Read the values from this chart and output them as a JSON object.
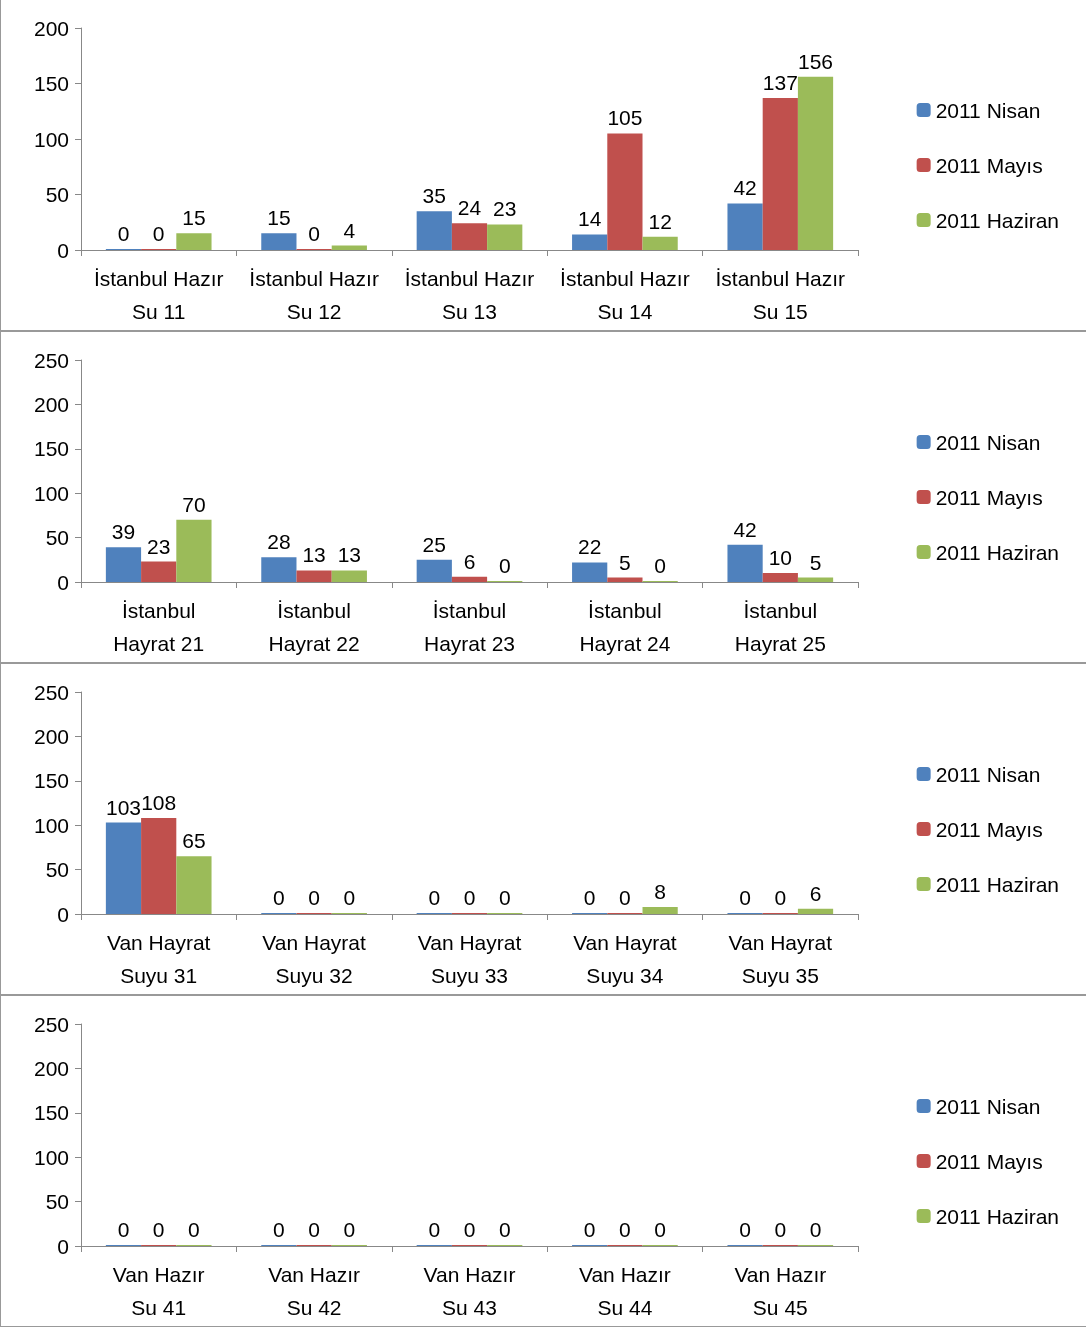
{
  "chart_data": [
    {
      "type": "bar",
      "categories": [
        "İstanbul Hazır\nSu 11",
        "İstanbul Hazır\nSu 12",
        "İstanbul Hazır\nSu 13",
        "İstanbul Hazır\nSu 14",
        "İstanbul Hazır\nSu 15"
      ],
      "series": [
        {
          "name": "2011 Nisan",
          "color": "#4f81bd",
          "values": [
            0,
            15,
            35,
            14,
            42
          ]
        },
        {
          "name": "2011 Mayıs",
          "color": "#c0504d",
          "values": [
            0,
            0,
            24,
            105,
            137
          ]
        },
        {
          "name": "2011 Haziran",
          "color": "#9bbb59",
          "values": [
            15,
            4,
            23,
            12,
            156
          ]
        }
      ],
      "ylim": [
        0,
        200
      ],
      "yticks": [
        0,
        50,
        100,
        150,
        200
      ],
      "data_labels": true,
      "legend": "right",
      "grid": false
    },
    {
      "type": "bar",
      "categories": [
        "İstanbul\nHayrat 21",
        "İstanbul\nHayrat 22",
        "İstanbul\nHayrat 23",
        "İstanbul\nHayrat 24",
        "İstanbul\nHayrat 25"
      ],
      "series": [
        {
          "name": "2011 Nisan",
          "color": "#4f81bd",
          "values": [
            39,
            28,
            25,
            22,
            42
          ]
        },
        {
          "name": "2011 Mayıs",
          "color": "#c0504d",
          "values": [
            23,
            13,
            6,
            5,
            10
          ]
        },
        {
          "name": "2011 Haziran",
          "color": "#9bbb59",
          "values": [
            70,
            13,
            0,
            0,
            5
          ]
        }
      ],
      "ylim": [
        0,
        250
      ],
      "yticks": [
        0,
        50,
        100,
        150,
        200,
        250
      ],
      "data_labels": true,
      "legend": "right",
      "grid": false
    },
    {
      "type": "bar",
      "categories": [
        "Van Hayrat\nSuyu 31",
        "Van Hayrat\nSuyu 32",
        "Van Hayrat\nSuyu 33",
        "Van Hayrat\nSuyu 34",
        "Van Hayrat\nSuyu 35"
      ],
      "series": [
        {
          "name": "2011 Nisan",
          "color": "#4f81bd",
          "values": [
            103,
            0,
            0,
            0,
            0
          ]
        },
        {
          "name": "2011 Mayıs",
          "color": "#c0504d",
          "values": [
            108,
            0,
            0,
            0,
            0
          ]
        },
        {
          "name": "2011 Haziran",
          "color": "#9bbb59",
          "values": [
            65,
            0,
            0,
            8,
            6
          ]
        }
      ],
      "ylim": [
        0,
        250
      ],
      "yticks": [
        0,
        50,
        100,
        150,
        200,
        250
      ],
      "data_labels": true,
      "legend": "right",
      "grid": false
    },
    {
      "type": "bar",
      "categories": [
        "Van Hazır\nSu 41",
        "Van Hazır\nSu 42",
        "Van Hazır\nSu 43",
        "Van Hazır\nSu 44",
        "Van Hazır\nSu 45"
      ],
      "series": [
        {
          "name": "2011 Nisan",
          "color": "#4f81bd",
          "values": [
            0,
            0,
            0,
            0,
            0
          ]
        },
        {
          "name": "2011 Mayıs",
          "color": "#c0504d",
          "values": [
            0,
            0,
            0,
            0,
            0
          ]
        },
        {
          "name": "2011 Haziran",
          "color": "#9bbb59",
          "values": [
            0,
            0,
            0,
            0,
            0
          ]
        }
      ],
      "ylim": [
        0,
        250
      ],
      "yticks": [
        0,
        50,
        100,
        150,
        200,
        250
      ],
      "data_labels": true,
      "legend": "right",
      "grid": false
    }
  ]
}
